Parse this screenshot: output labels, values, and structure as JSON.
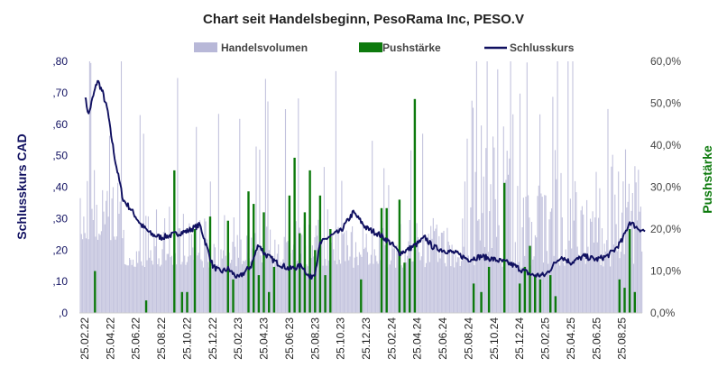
{
  "chart_data": {
    "type": "combo",
    "title": "Chart seit Handelsbeginn, PesoRama Inc, PESO.V",
    "legend": {
      "position": "top",
      "items": [
        {
          "label": "Handelsvolumen",
          "color": "#b8b8d8",
          "kind": "area"
        },
        {
          "label": "Pushstärke",
          "color": "#0d7a0d",
          "kind": "bar"
        },
        {
          "label": "Schlusskurs",
          "color": "#101060",
          "kind": "line"
        }
      ]
    },
    "left_axis": {
      "title": "Schlusskurs CAD",
      "color": "#101060",
      "range": [
        0,
        0.8
      ],
      "ticks": [
        0,
        0.1,
        0.2,
        0.3,
        0.4,
        0.5,
        0.6,
        0.7,
        0.8
      ],
      "tick_labels": [
        ",0",
        ",10",
        ",20",
        ",30",
        ",40",
        ",50",
        ",60",
        ",70",
        ",80"
      ]
    },
    "right_axis": {
      "title": "Pushstärke",
      "color": "#0d7a0d",
      "range": [
        0,
        60
      ],
      "ticks": [
        0,
        10,
        20,
        30,
        40,
        50,
        60
      ],
      "tick_labels": [
        "0,0%",
        "10,0%",
        "20,0%",
        "30,0%",
        "40,0%",
        "50,0%",
        "60,0%"
      ]
    },
    "x_axis": {
      "label_color": "#222222",
      "tick_labels": [
        "25.02.22",
        "25.04.22",
        "25.06.22",
        "25.08.22",
        "25.10.22",
        "25.12.22",
        "25.02.23",
        "25.04.23",
        "25.06.23",
        "25.08.23",
        "25.10.23",
        "25.12.23",
        "25.02.24",
        "25.04.24",
        "25.06.24",
        "25.08.24",
        "25.10.24",
        "25.12.24",
        "25.02.25",
        "25.04.25",
        "25.06.25",
        "25.08.25"
      ]
    },
    "series": [
      {
        "name": "Schlusskurs",
        "axis": "left",
        "x": [
          0.0,
          0.15,
          0.3,
          0.5,
          0.7,
          0.9,
          1.0,
          1.2,
          1.5,
          1.8,
          2.2,
          2.6,
          3.0,
          3.5,
          4.0,
          4.5,
          5.0,
          5.3,
          5.6,
          6.0,
          6.5,
          6.8,
          7.0,
          7.5,
          8.0,
          8.5,
          8.8,
          9.0,
          9.2,
          9.5,
          10.0,
          10.5,
          10.8,
          11.0,
          11.5,
          12.0,
          12.3,
          12.6,
          13.0,
          13.3,
          13.6,
          14.0,
          14.5,
          15.0,
          15.5,
          16.0,
          16.5,
          16.8,
          17.0,
          17.5,
          18.0,
          18.3,
          18.6,
          19.0,
          19.5,
          20.0,
          20.4,
          20.7,
          21.0,
          21.3,
          21.6,
          21.9
        ],
        "values": [
          0.69,
          0.63,
          0.68,
          0.74,
          0.7,
          0.64,
          0.58,
          0.48,
          0.36,
          0.33,
          0.28,
          0.25,
          0.24,
          0.25,
          0.26,
          0.28,
          0.15,
          0.13,
          0.14,
          0.11,
          0.15,
          0.22,
          0.19,
          0.16,
          0.14,
          0.15,
          0.11,
          0.13,
          0.22,
          0.24,
          0.26,
          0.32,
          0.29,
          0.27,
          0.25,
          0.22,
          0.19,
          0.2,
          0.22,
          0.24,
          0.21,
          0.2,
          0.19,
          0.17,
          0.18,
          0.17,
          0.16,
          0.15,
          0.14,
          0.12,
          0.12,
          0.15,
          0.18,
          0.16,
          0.18,
          0.17,
          0.18,
          0.2,
          0.23,
          0.29,
          0.27,
          0.26
        ]
      },
      {
        "name": "Pushstärke",
        "axis": "right",
        "x": [
          0.4,
          2.4,
          3.5,
          3.8,
          4.0,
          4.3,
          4.9,
          5.6,
          5.8,
          6.4,
          6.6,
          6.8,
          7.0,
          7.2,
          7.4,
          8.0,
          8.2,
          8.4,
          8.6,
          8.8,
          9.0,
          9.2,
          9.4,
          9.6,
          10.8,
          11.6,
          11.8,
          12.3,
          12.5,
          12.7,
          12.9,
          15.2,
          15.5,
          15.8,
          16.4,
          17.0,
          17.2,
          17.4,
          17.6,
          17.8,
          18.2,
          18.4,
          20.9,
          21.1,
          21.3,
          21.5
        ],
        "values": [
          10,
          3,
          34,
          5,
          5,
          20,
          23,
          22,
          8,
          29,
          26,
          9,
          24,
          5,
          11,
          28,
          37,
          19,
          24,
          34,
          15,
          28,
          9,
          20,
          8,
          25,
          25,
          27,
          12,
          13,
          51,
          7,
          5,
          11,
          31,
          7,
          11,
          16,
          9,
          8,
          9,
          4,
          8,
          6,
          20,
          5
        ]
      }
    ],
    "volume_note": "Handelsvolumen drawn as grey-purple background spikes without numeric axis"
  }
}
